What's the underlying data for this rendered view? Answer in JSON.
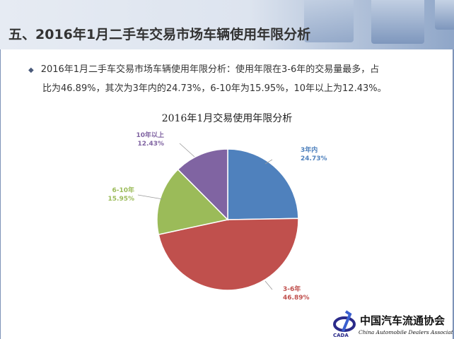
{
  "slide": {
    "title": "五、2016年1月二手车交易市场车辆使用年限分析",
    "bullet_line1": "2016年1月二手车交易市场车辆使用年限分析：使用年限在3-6年的交易量最多，占",
    "bullet_line2": "比为46.89%，其次为3年内的24.73%，6-10年为15.95%，10年以上为12.43%。",
    "logo_text": "中国汽车流通协会 China Automobile Dealers Association CADA"
  },
  "chart_data": {
    "type": "pie",
    "title": "2016年1月交易使用年限分析",
    "categories": [
      "3年内",
      "3-6年",
      "6-10年",
      "10年以上"
    ],
    "values": [
      24.73,
      46.89,
      15.95,
      12.43
    ],
    "labels": [
      "24.73%",
      "46.89%",
      "15.95%",
      "12.43%"
    ],
    "colors": [
      "#4f81bd",
      "#c0504d",
      "#9bbb59",
      "#8064a2"
    ],
    "start": "top-clockwise",
    "legend": "none"
  }
}
